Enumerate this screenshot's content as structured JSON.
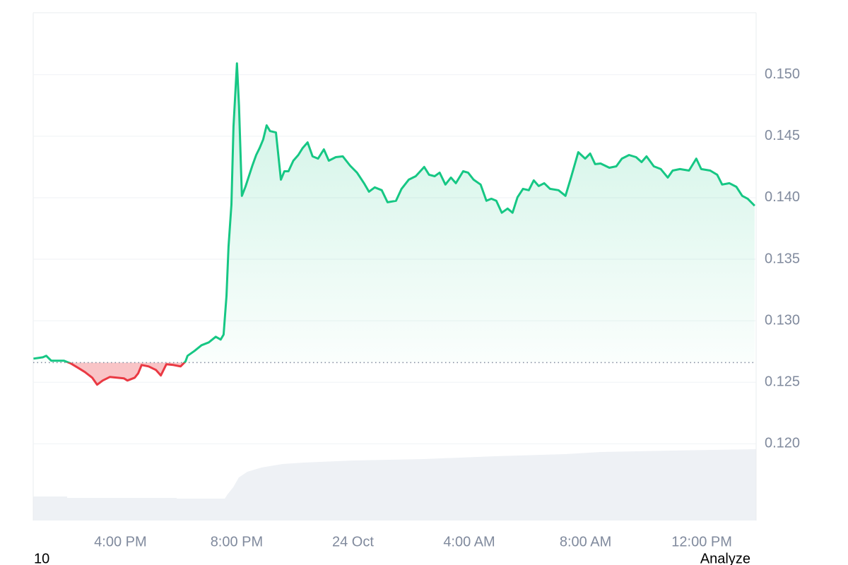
{
  "chart_data": {
    "type": "line",
    "x": [
      -10.99,
      -10.67,
      -10.55,
      -10.38,
      -10.07,
      -9.94,
      -9.7,
      -9.46,
      -9.22,
      -8.97,
      -8.8,
      -8.61,
      -8.36,
      -8.12,
      -7.88,
      -7.76,
      -7.51,
      -7.39,
      -7.27,
      -7.03,
      -6.78,
      -6.61,
      -6.42,
      -6.18,
      -5.93,
      -5.76,
      -5.69,
      -5.45,
      -5.21,
      -4.96,
      -4.72,
      -4.55,
      -4.45,
      -4.35,
      -4.28,
      -4.18,
      -4.11,
      -3.99,
      -3.92,
      -3.82,
      -3.7,
      -3.58,
      -3.46,
      -3.33,
      -3.21,
      -3.09,
      -2.97,
      -2.85,
      -2.65,
      -2.48,
      -2.36,
      -2.22,
      -2.05,
      -1.88,
      -1.73,
      -1.56,
      -1.39,
      -1.2,
      -1.0,
      -0.83,
      -0.59,
      -0.35,
      -0.1,
      0.14,
      0.38,
      0.55,
      0.75,
      0.99,
      1.19,
      1.48,
      1.67,
      1.92,
      2.16,
      2.45,
      2.62,
      2.81,
      2.98,
      3.18,
      3.37,
      3.54,
      3.79,
      3.96,
      4.15,
      4.39,
      4.59,
      4.76,
      4.93,
      5.12,
      5.32,
      5.49,
      5.66,
      5.85,
      6.05,
      6.22,
      6.39,
      6.58,
      6.78,
      7.07,
      7.31,
      7.5,
      7.75,
      7.99,
      8.16,
      8.33,
      8.52,
      8.82,
      9.06,
      9.25,
      9.5,
      9.74,
      9.93,
      10.1,
      10.35,
      10.59,
      10.83,
      11.0,
      11.25,
      11.56,
      11.81,
      11.98,
      12.29,
      12.53,
      12.7,
      12.95,
      13.19,
      13.39,
      13.58,
      13.82
    ],
    "values": [
      0.12692,
      0.12703,
      0.12715,
      0.12675,
      0.12675,
      0.12675,
      0.12652,
      0.12618,
      0.12583,
      0.12537,
      0.1248,
      0.12514,
      0.12543,
      0.12537,
      0.12532,
      0.12514,
      0.12537,
      0.12572,
      0.1264,
      0.12629,
      0.126,
      0.12555,
      0.12646,
      0.1264,
      0.12629,
      0.12669,
      0.12715,
      0.12755,
      0.12801,
      0.12824,
      0.1287,
      0.12847,
      0.12887,
      0.13202,
      0.13603,
      0.13946,
      0.14576,
      0.15092,
      0.14748,
      0.14015,
      0.14089,
      0.14175,
      0.14261,
      0.14347,
      0.14404,
      0.14473,
      0.14588,
      0.14542,
      0.1453,
      0.14147,
      0.14215,
      0.14215,
      0.14301,
      0.14347,
      0.14404,
      0.1445,
      0.14336,
      0.14318,
      0.14393,
      0.14301,
      0.1433,
      0.14336,
      0.14261,
      0.14204,
      0.14118,
      0.14049,
      0.14084,
      0.14061,
      0.13963,
      0.13975,
      0.14072,
      0.14147,
      0.14175,
      0.1425,
      0.14187,
      0.14175,
      0.14204,
      0.14107,
      0.14164,
      0.14118,
      0.14215,
      0.14204,
      0.14147,
      0.14107,
      0.13975,
      0.13992,
      0.13975,
      0.13878,
      0.13912,
      0.13878,
      0.14004,
      0.14072,
      0.14061,
      0.14141,
      0.14095,
      0.14118,
      0.14072,
      0.14061,
      0.14015,
      0.14164,
      0.1437,
      0.14318,
      0.14359,
      0.14273,
      0.14278,
      0.14244,
      0.14255,
      0.14318,
      0.14347,
      0.1433,
      0.1429,
      0.14336,
      0.14255,
      0.14233,
      0.14164,
      0.14221,
      0.14233,
      0.14221,
      0.14318,
      0.14233,
      0.14221,
      0.14187,
      0.14107,
      0.14118,
      0.14089,
      0.14015,
      0.13992,
      0.13935
    ],
    "baseline": 0.1266,
    "up_color": "#16c784",
    "down_color": "#ea3943",
    "xlim": [
      -11,
      13.87
    ],
    "xticks": [
      {
        "value": -8,
        "label": "4:00 PM"
      },
      {
        "value": -4,
        "label": "8:00 PM"
      },
      {
        "value": 0,
        "label": "24 Oct"
      },
      {
        "value": 4,
        "label": "4:00 AM"
      },
      {
        "value": 8,
        "label": "8:00 AM"
      },
      {
        "value": 12,
        "label": "12:00 PM"
      }
    ],
    "ylim": [
      0.11376,
      0.15504
    ],
    "yticks": [
      {
        "value": 0.12,
        "label": "0.120"
      },
      {
        "value": 0.125,
        "label": "0.125"
      },
      {
        "value": 0.13,
        "label": "0.130"
      },
      {
        "value": 0.135,
        "label": "0.135"
      },
      {
        "value": 0.14,
        "label": "0.140"
      },
      {
        "value": 0.145,
        "label": "0.145"
      },
      {
        "value": 0.15,
        "label": "0.150"
      }
    ],
    "grid": true,
    "footer_left": "10",
    "footer_right": "Analyze"
  }
}
